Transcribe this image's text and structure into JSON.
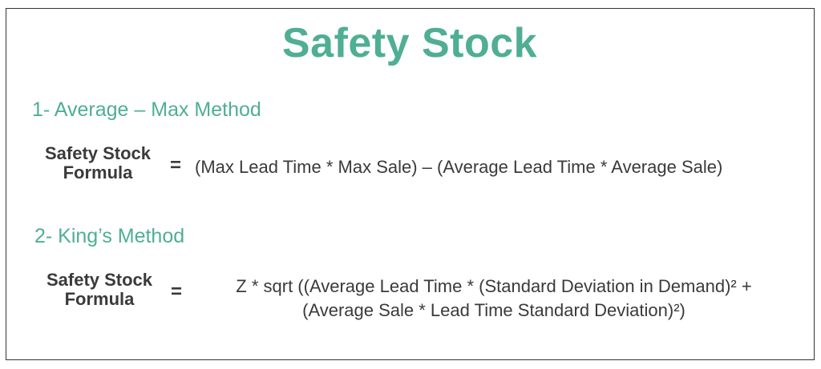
{
  "title": "Safety Stock",
  "methods": [
    {
      "heading": "1- Average – Max Method",
      "label_line1": "Safety Stock",
      "label_line2": "Formula",
      "equals": "=",
      "formula_lines": [
        "(Max Lead Time * Max Sale) – (Average Lead Time * Average Sale)"
      ]
    },
    {
      "heading": "2- King’s Method",
      "label_line1": "Safety Stock",
      "label_line2": "Formula",
      "equals": "=",
      "formula_lines": [
        "Z * sqrt ((Average Lead Time * (Standard Deviation in Demand)² +",
        "(Average Sale * Lead Time Standard Deviation)²)"
      ]
    }
  ],
  "colors": {
    "accent": "#4fae94",
    "text": "#3a3a3a",
    "border": "#333333"
  }
}
